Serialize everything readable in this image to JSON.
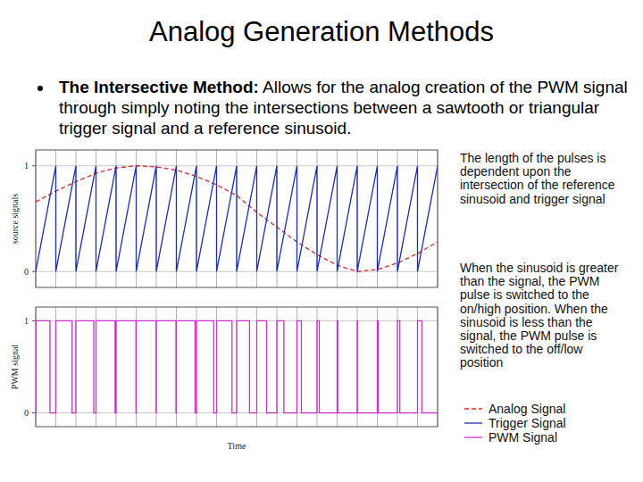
{
  "slide": {
    "title": "Analog Generation Methods",
    "bullet_label": "The Intersective Method:",
    "bullet_text": "Allows for the analog creation of the PWM signal through simply noting the intersections between a sawtooth or triangular trigger signal and a reference sinusoid.",
    "notes": [
      "The length of the pulses is dependent upon the intersection of the reference sinusoid and trigger signal",
      "When the sinusoid is greater than the signal, the PWM pulse is switched to the on/high position. When the sinusoid is less than the signal, the PWM pulse is switched to the off/low position"
    ]
  },
  "chart_data": [
    {
      "type": "line",
      "y_label": "source signals",
      "xlim": [
        0,
        20
      ],
      "ylim": [
        -0.15,
        1.15
      ],
      "xticks": [
        0,
        1,
        2,
        3,
        4,
        5,
        6,
        7,
        8,
        9,
        10,
        11,
        12,
        13,
        14,
        15,
        16,
        17,
        18,
        19,
        20
      ],
      "yticks": [
        0,
        1
      ],
      "grid": true,
      "tick_labels": "y",
      "legend": "right",
      "series": [
        {
          "name": "Analog Signal",
          "color": "#d42a2a",
          "line_style": "dashed",
          "x": [
            0,
            1,
            2,
            3,
            4,
            5,
            6,
            7,
            8,
            9,
            10,
            11,
            12,
            13,
            14,
            15,
            16,
            17,
            18,
            19,
            20
          ],
          "values": [
            0.66,
            0.76,
            0.85,
            0.93,
            0.98,
            1.0,
            0.99,
            0.96,
            0.9,
            0.82,
            0.72,
            0.56,
            0.42,
            0.28,
            0.16,
            0.06,
            0.0,
            0.02,
            0.08,
            0.17,
            0.28
          ]
        },
        {
          "name": "Trigger Signal",
          "color": "#1c2ea8",
          "line_style": "solid",
          "x": [
            0,
            1,
            1,
            2,
            2,
            3,
            3,
            4,
            4,
            5,
            5,
            6,
            6,
            7,
            7,
            8,
            8,
            9,
            9,
            10,
            10,
            11,
            11,
            12,
            12,
            13,
            13,
            14,
            14,
            15,
            15,
            16,
            16,
            17,
            17,
            18,
            18,
            19,
            19,
            20
          ],
          "values": [
            0,
            1,
            0,
            1,
            0,
            1,
            0,
            1,
            0,
            1,
            0,
            1,
            0,
            1,
            0,
            1,
            0,
            1,
            0,
            1,
            0,
            1,
            0,
            1,
            0,
            1,
            0,
            1,
            0,
            1,
            0,
            1,
            0,
            1,
            0,
            1,
            0,
            1,
            0,
            1
          ]
        }
      ]
    },
    {
      "type": "line",
      "y_label": "PWM signal",
      "x_label": "Time",
      "xlim": [
        0,
        20
      ],
      "ylim": [
        -0.15,
        1.15
      ],
      "xticks": [
        0,
        1,
        2,
        3,
        4,
        5,
        6,
        7,
        8,
        9,
        10,
        11,
        12,
        13,
        14,
        15,
        16,
        17,
        18,
        19,
        20
      ],
      "yticks": [
        0,
        1
      ],
      "grid": true,
      "tick_labels": "y",
      "legend": "right",
      "series": [
        {
          "name": "PWM Signal",
          "color": "#cc2fcc",
          "line_style": "solid",
          "x": [
            0,
            0,
            0.71,
            0.71,
            1,
            1,
            1.81,
            1.81,
            2,
            2,
            2.89,
            2.89,
            3,
            3,
            3.95,
            3.95,
            4,
            4,
            4.99,
            4.99,
            5,
            5,
            5.99,
            5.99,
            6,
            6,
            6.98,
            6.98,
            7,
            7,
            7.93,
            7.93,
            8,
            8,
            8.86,
            8.86,
            9,
            9,
            9.77,
            9.77,
            10,
            10,
            10.64,
            10.64,
            11,
            11,
            11.49,
            11.49,
            12,
            12,
            12.35,
            12.35,
            13,
            13,
            13.22,
            13.22,
            14,
            14,
            14.11,
            14.11,
            15,
            15,
            15.03,
            15.03,
            16,
            16,
            16.01,
            16.01,
            17,
            17,
            17.05,
            17.05,
            18,
            18,
            18.12,
            18.12,
            19,
            19,
            19.22,
            19.22,
            20
          ],
          "values": [
            0,
            1,
            1,
            0,
            0,
            1,
            1,
            0,
            0,
            1,
            1,
            0,
            0,
            1,
            1,
            0,
            0,
            1,
            1,
            0,
            0,
            1,
            1,
            0,
            0,
            1,
            1,
            0,
            0,
            1,
            1,
            0,
            0,
            1,
            1,
            0,
            0,
            1,
            1,
            0,
            0,
            1,
            1,
            0,
            0,
            1,
            1,
            0,
            0,
            1,
            1,
            0,
            0,
            1,
            1,
            0,
            0,
            1,
            1,
            0,
            0,
            1,
            1,
            0,
            0,
            1,
            1,
            0,
            0,
            1,
            1,
            0,
            0,
            1,
            1,
            0,
            0,
            1,
            1,
            0,
            0
          ]
        }
      ]
    }
  ]
}
